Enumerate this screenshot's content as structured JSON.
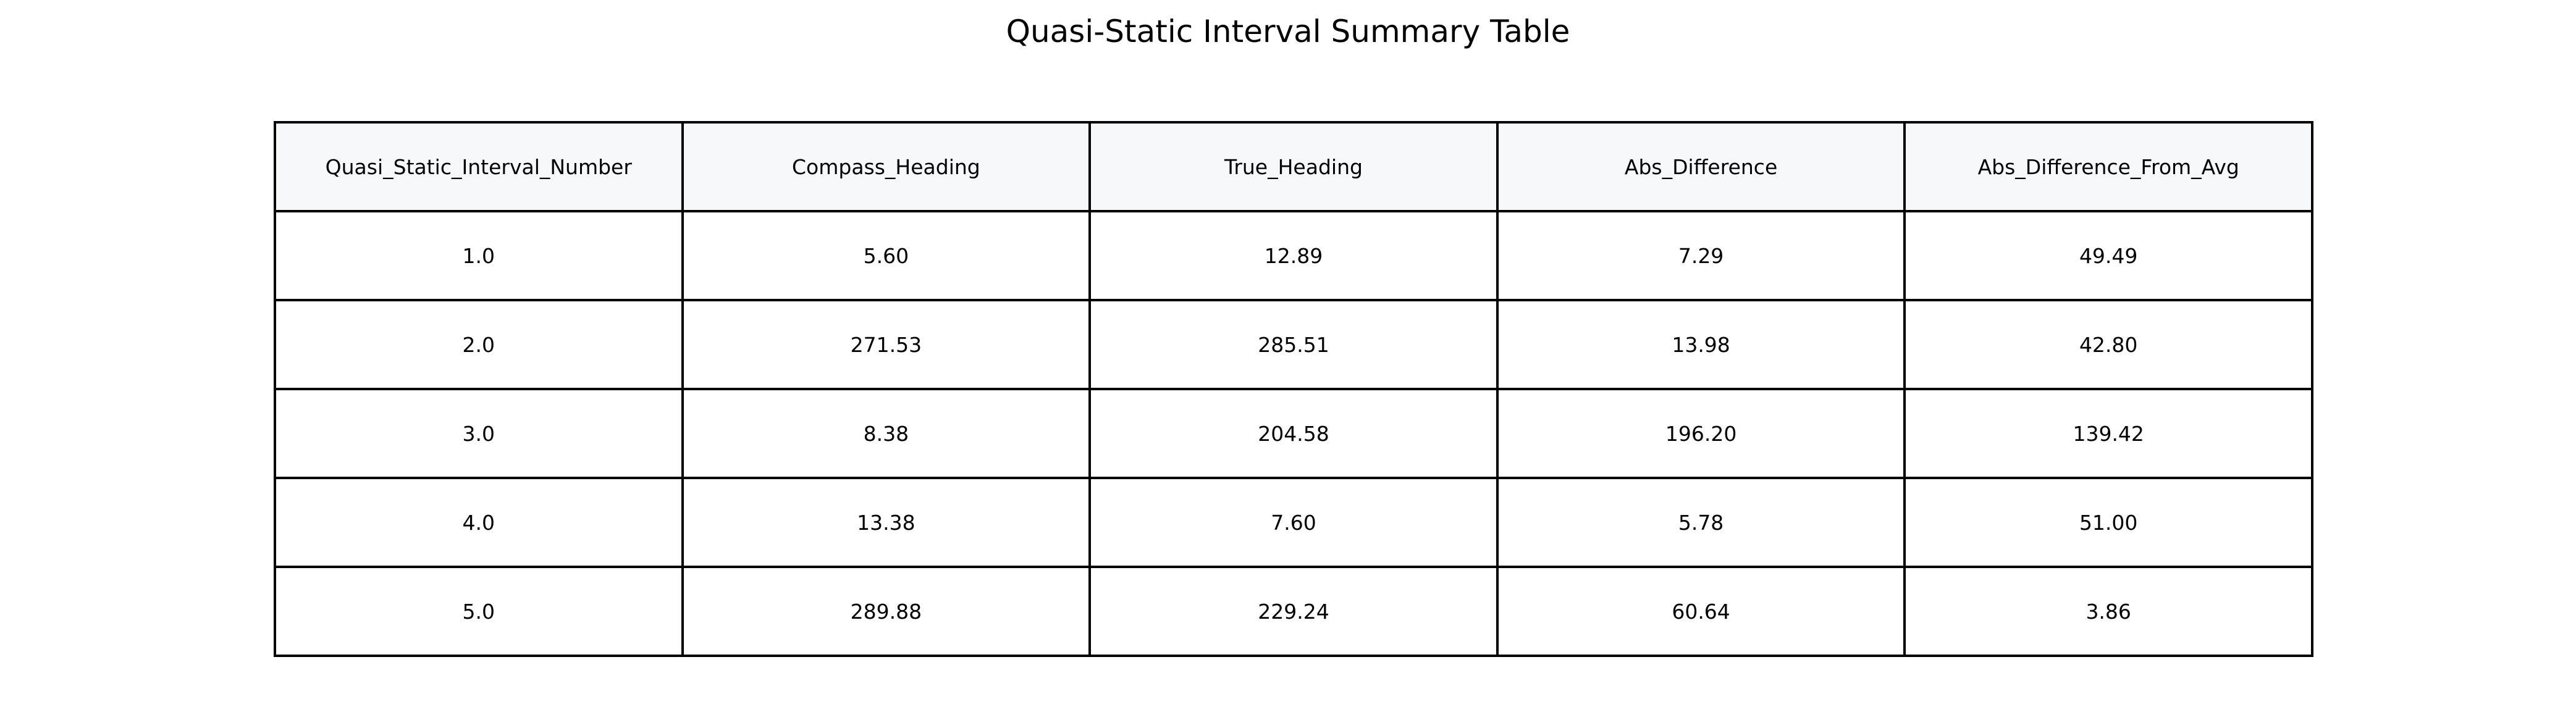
{
  "chart_data": {
    "type": "table",
    "title": "Quasi-Static Interval Summary Table",
    "columns": [
      "Quasi_Static_Interval_Number",
      "Compass_Heading",
      "True_Heading",
      "Abs_Difference",
      "Abs_Difference_From_Avg"
    ],
    "rows": [
      [
        "1.0",
        "5.60",
        "12.89",
        "7.29",
        "49.49"
      ],
      [
        "2.0",
        "271.53",
        "285.51",
        "13.98",
        "42.80"
      ],
      [
        "3.0",
        "8.38",
        "204.58",
        "196.20",
        "139.42"
      ],
      [
        "4.0",
        "13.38",
        "7.60",
        "5.78",
        "51.00"
      ],
      [
        "5.0",
        "289.88",
        "229.24",
        "60.64",
        "3.86"
      ]
    ],
    "header_background": "#f7f8fa",
    "border_color": "#000000"
  }
}
